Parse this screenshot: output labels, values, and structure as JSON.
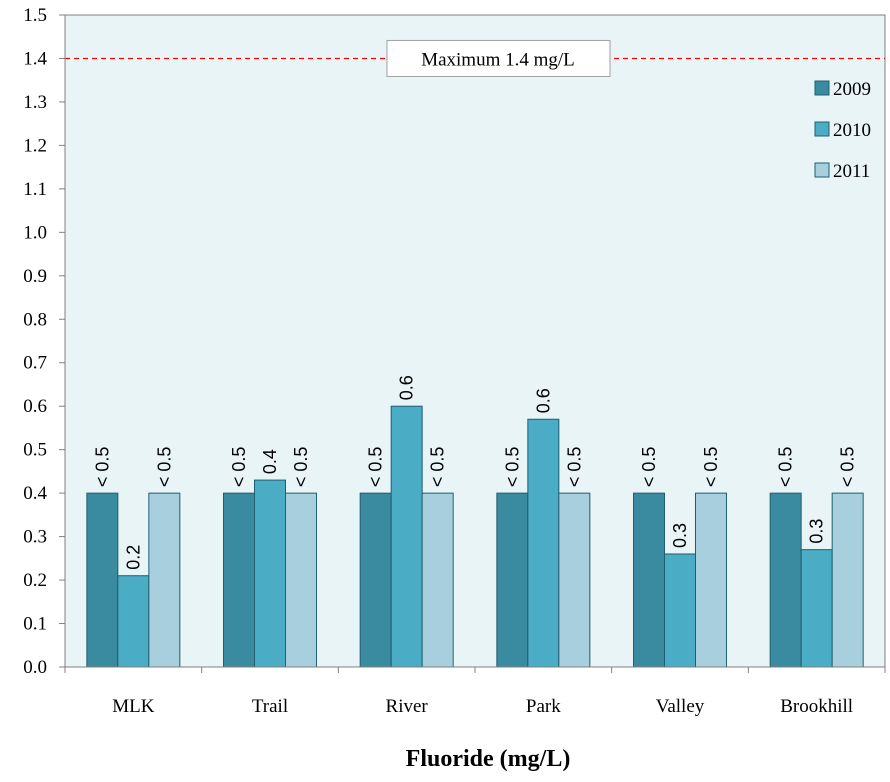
{
  "chart_data": {
    "type": "bar",
    "title": "",
    "xlabel": "Fluoride (mg/L)",
    "ylabel": "",
    "ylim": [
      0,
      1.5
    ],
    "ytick_step": 0.1,
    "yticks": [
      "0.0",
      "0.1",
      "0.2",
      "0.3",
      "0.4",
      "0.5",
      "0.6",
      "0.7",
      "0.8",
      "0.9",
      "1.0",
      "1.1",
      "1.2",
      "1.3",
      "1.4",
      "1.5"
    ],
    "categories": [
      "MLK",
      "Trail",
      "River",
      "Park",
      "Valley",
      "Brookhill"
    ],
    "series": [
      {
        "name": "2009",
        "color": "#3b8ba0",
        "values": [
          0.4,
          0.4,
          0.4,
          0.4,
          0.4,
          0.4
        ],
        "labels": [
          "< 0.5",
          "< 0.5",
          "< 0.5",
          "< 0.5",
          "< 0.5",
          "< 0.5"
        ]
      },
      {
        "name": "2010",
        "color": "#4bacc6",
        "values": [
          0.21,
          0.43,
          0.6,
          0.57,
          0.26,
          0.27
        ],
        "labels": [
          "0.2",
          "0.4",
          "0.6",
          "0.6",
          "0.3",
          "0.3"
        ]
      },
      {
        "name": "2011",
        "color": "#a7cfdd",
        "values": [
          0.4,
          0.4,
          0.4,
          0.4,
          0.4,
          0.4
        ],
        "labels": [
          "< 0.5",
          "< 0.5",
          "< 0.5",
          "< 0.5",
          "< 0.5",
          "< 0.5"
        ]
      }
    ],
    "reference_line": {
      "value": 1.4,
      "label": "Maximum 1.4 mg/L",
      "color": "#ff0000",
      "style": "dashed"
    },
    "background": "#e9f4f6",
    "bar_stroke": "#1f5f70",
    "legend_position": "right",
    "grid": false
  }
}
